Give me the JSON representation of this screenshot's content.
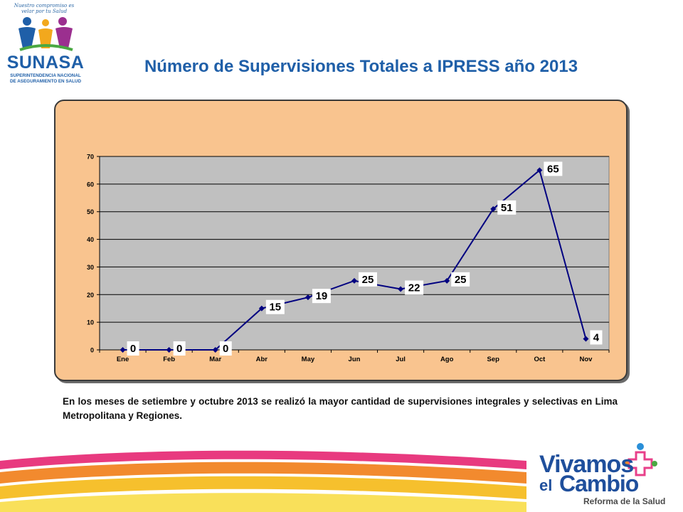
{
  "logo": {
    "tagline": "Nuestro compromiso es velar por tu Salud",
    "name": "SUNASA",
    "subtitle_line1": "SUPERINTENDENCIA NACIONAL",
    "subtitle_line2": "DE ASEGURAMIENTO EN SALUD"
  },
  "slide": {
    "title": "Número de Supervisiones Totales a IPRESS año 2013",
    "caption": "En los meses de setiembre y octubre 2013 se realizó la mayor cantidad de supervisiones integrales y selectivas en Lima Metropolitana y Regiones."
  },
  "footer_logo": {
    "word1": "Vivamos",
    "word2": "el",
    "word3": "Cambio",
    "tagline": "Reforma de la Salud"
  },
  "colors": {
    "title_blue": "#1f5fa8",
    "panel_fill": "#f9c48f",
    "plot_fill": "#c0c0c0",
    "series_line": "#000080"
  },
  "chart_data": {
    "type": "line",
    "title": "",
    "xlabel": "",
    "ylabel": "",
    "categories": [
      "Ene",
      "Feb",
      "Mar",
      "Abr",
      "May",
      "Jun",
      "Jul",
      "Ago",
      "Sep",
      "Oct",
      "Nov"
    ],
    "series": [
      {
        "values": [
          0,
          0,
          0,
          15,
          19,
          25,
          22,
          25,
          51,
          65,
          4
        ]
      }
    ],
    "ylim": [
      0,
      70
    ],
    "yticks": [
      0,
      10,
      20,
      30,
      40,
      50,
      60,
      70
    ],
    "grid": true,
    "legend": "none",
    "data_labels": true
  }
}
